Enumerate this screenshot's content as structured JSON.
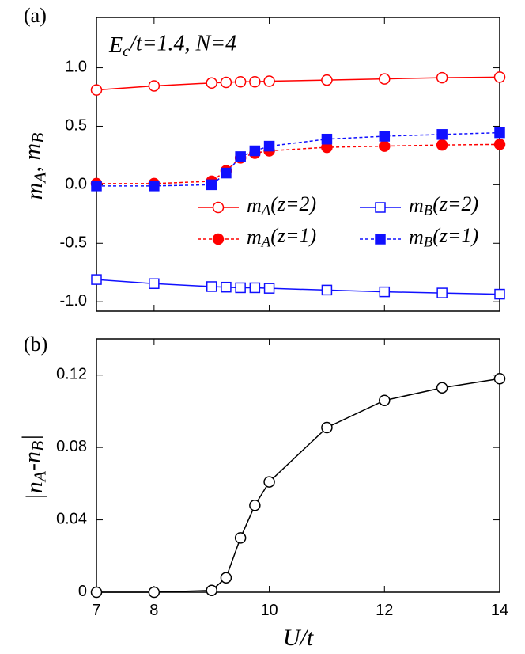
{
  "chart_data": [
    {
      "type": "line",
      "panel_label": "(a)",
      "annotation": "Ec/t=1.4, N=4",
      "y_label": "mA, mB",
      "x": [
        7,
        8,
        9,
        9.25,
        9.5,
        9.75,
        10,
        11,
        12,
        13,
        14
      ],
      "series": [
        {
          "name": "mA(z=2)",
          "color": "#ff0000",
          "marker": "circle",
          "filled": false,
          "dashed": false,
          "values": [
            0.81,
            0.845,
            0.87,
            0.875,
            0.88,
            0.88,
            0.885,
            0.895,
            0.905,
            0.915,
            0.92
          ]
        },
        {
          "name": "mB(z=2)",
          "color": "#1010ff",
          "marker": "square",
          "filled": false,
          "dashed": false,
          "values": [
            -0.81,
            -0.845,
            -0.87,
            -0.875,
            -0.88,
            -0.88,
            -0.885,
            -0.9,
            -0.915,
            -0.925,
            -0.935
          ]
        },
        {
          "name": "mA(z=1)",
          "color": "#ff0000",
          "marker": "circle",
          "filled": true,
          "dashed": true,
          "values": [
            0.01,
            0.01,
            0.03,
            0.12,
            0.23,
            0.27,
            0.29,
            0.32,
            0.33,
            0.34,
            0.345
          ]
        },
        {
          "name": "mB(z=1)",
          "color": "#1010ff",
          "marker": "square",
          "filled": true,
          "dashed": true,
          "values": [
            -0.01,
            -0.01,
            0.0,
            0.1,
            0.24,
            0.29,
            0.33,
            0.39,
            0.415,
            0.43,
            0.445
          ]
        }
      ],
      "xlim": [
        7,
        14
      ],
      "xticks": [
        8,
        10,
        12,
        14
      ],
      "ylim": [
        -1.08,
        1.43
      ],
      "yticks": [
        {
          "value": -1,
          "label": "-1.0"
        },
        -0.5,
        {
          "value": 0,
          "label": "0.0"
        },
        0.5,
        {
          "value": 1,
          "label": "1.0"
        }
      ],
      "legend": "right"
    },
    {
      "type": "line",
      "panel_label": "(b)",
      "y_label": "|nA-nB|",
      "x_label": "U/t",
      "x": [
        7,
        8,
        9,
        9.25,
        9.5,
        9.75,
        10,
        11,
        12,
        13,
        14
      ],
      "series": [
        {
          "color": "#000000",
          "marker": "circle",
          "filled": false,
          "dashed": false,
          "values": [
            0,
            0,
            0.001,
            0.008,
            0.03,
            0.048,
            0.061,
            0.091,
            0.106,
            0.113,
            0.118
          ]
        }
      ],
      "xlim": [
        7,
        14
      ],
      "xticks": [
        8,
        10,
        12,
        14
      ],
      "ylim": [
        0,
        0.14
      ],
      "yticks": [
        0,
        0.04,
        0.08,
        0.12
      ]
    }
  ]
}
